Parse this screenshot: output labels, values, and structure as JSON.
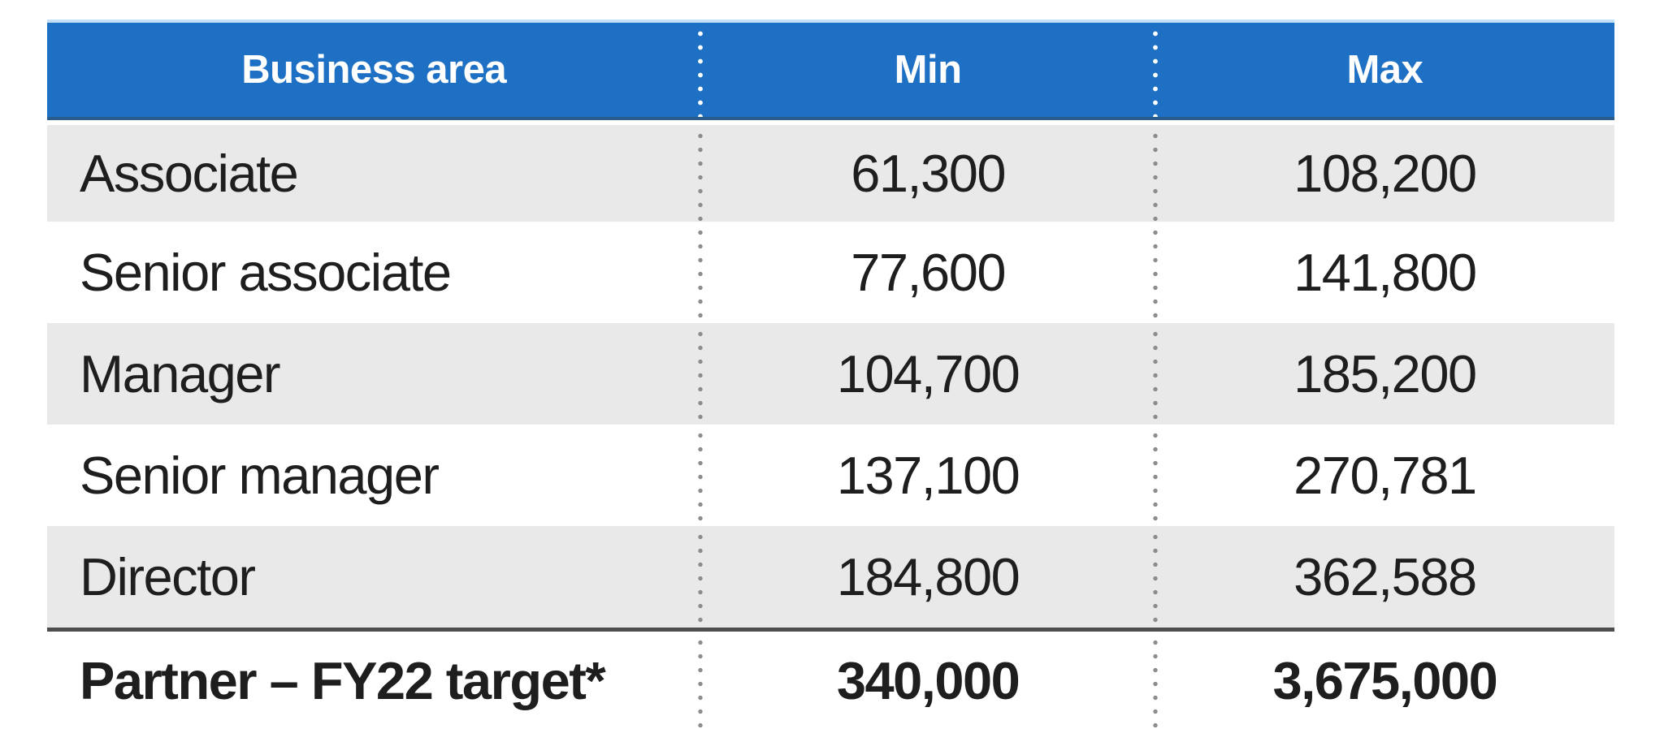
{
  "table": {
    "columns": [
      {
        "label": "Business area"
      },
      {
        "label": "Min"
      },
      {
        "label": "Max"
      }
    ],
    "rows": [
      {
        "area": "Associate",
        "min": "61,300",
        "max": "108,200"
      },
      {
        "area": "Senior associate",
        "min": "77,600",
        "max": "141,800"
      },
      {
        "area": "Manager",
        "min": "104,700",
        "max": "185,200"
      },
      {
        "area": "Senior manager",
        "min": "137,100",
        "max": "270,781"
      },
      {
        "area": "Director",
        "min": "184,800",
        "max": "362,588"
      },
      {
        "area": "Partner – FY22 target*",
        "min": "340,000",
        "max": "3,675,000"
      }
    ],
    "colors": {
      "header_bg": "#1d70c4",
      "header_text": "#ffffff",
      "header_border_top": "#c3e0f6",
      "header_border_bottom": "#2b5c8e",
      "row_alt_bg": "#e9e9e9",
      "row_bg": "#ffffff",
      "body_text": "#1e1e1e",
      "dot_header": "#ffffff",
      "dot_body": "#8c8c8c",
      "partner_line": "#4e4e4e"
    }
  },
  "chart_data": {
    "type": "table",
    "title": "",
    "columns": [
      "Business area",
      "Min",
      "Max"
    ],
    "rows": [
      [
        "Associate",
        61300,
        108200
      ],
      [
        "Senior associate",
        77600,
        141800
      ],
      [
        "Manager",
        104700,
        185200
      ],
      [
        "Senior manager",
        137100,
        270781
      ],
      [
        "Director",
        184800,
        362588
      ],
      [
        "Partner – FY22 target*",
        340000,
        3675000
      ]
    ],
    "layout_hints": {
      "header_style": "blue band, white bold centered text",
      "column_separators": "vertical dotted lines",
      "row_striping": "alternating light gray / white",
      "last_row": "bold with dark top rule"
    }
  }
}
